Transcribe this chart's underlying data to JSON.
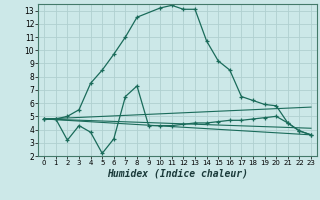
{
  "xlabel": "Humidex (Indice chaleur)",
  "xlim": [
    -0.5,
    23.5
  ],
  "ylim": [
    2,
    13.5
  ],
  "yticks": [
    2,
    3,
    4,
    5,
    6,
    7,
    8,
    9,
    10,
    11,
    12,
    13
  ],
  "xticks": [
    0,
    1,
    2,
    3,
    4,
    5,
    6,
    7,
    8,
    9,
    10,
    11,
    12,
    13,
    14,
    15,
    16,
    17,
    18,
    19,
    20,
    21,
    22,
    23
  ],
  "bg_color": "#cce8e8",
  "grid_color": "#b0d0d0",
  "line_color": "#1a6b5a",
  "series1": {
    "x": [
      0,
      1,
      2,
      3,
      4,
      5,
      6,
      7,
      8,
      10,
      11,
      12,
      13,
      14,
      15,
      16,
      17,
      18,
      19,
      20,
      21,
      22,
      23
    ],
    "y": [
      4.8,
      4.8,
      5.0,
      5.5,
      7.5,
      8.5,
      9.7,
      11.0,
      12.5,
      13.2,
      13.4,
      13.1,
      13.1,
      10.7,
      9.2,
      8.5,
      6.5,
      6.2,
      5.9,
      5.8,
      4.5,
      3.9,
      3.6
    ]
  },
  "series2": {
    "x": [
      0,
      1,
      2,
      3,
      4,
      5,
      6,
      7,
      8,
      9,
      10,
      11,
      12,
      13,
      14,
      15,
      16,
      17,
      18,
      19,
      20,
      21,
      22,
      23
    ],
    "y": [
      4.8,
      4.8,
      3.2,
      4.3,
      3.8,
      2.2,
      3.3,
      6.5,
      7.3,
      4.3,
      4.3,
      4.3,
      4.4,
      4.5,
      4.5,
      4.6,
      4.7,
      4.7,
      4.8,
      4.9,
      5.0,
      4.5,
      3.9,
      3.6
    ]
  },
  "line3": {
    "x": [
      0,
      23
    ],
    "y": [
      4.8,
      4.1
    ]
  },
  "line4": {
    "x": [
      0,
      23
    ],
    "y": [
      4.8,
      3.6
    ]
  },
  "line5": {
    "x": [
      0,
      23
    ],
    "y": [
      4.8,
      5.7
    ]
  }
}
